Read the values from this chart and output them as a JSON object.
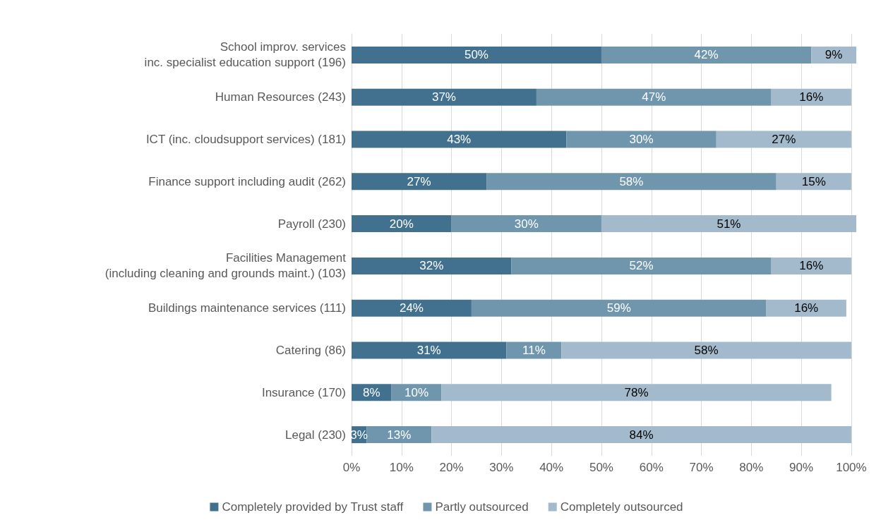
{
  "chart_data": {
    "type": "bar",
    "orientation": "horizontal",
    "stacked": true,
    "categories": [
      "School improv. services\ninc. specialist education support (196)",
      "Human Resources (243)",
      "ICT (inc. cloudsupport services) (181)",
      "Finance support including audit (262)",
      "Payroll (230)",
      "Facilities Management\n(including cleaning and grounds maint.) (103)",
      "Buildings maintenance services (111)",
      "Catering (86)",
      "Insurance (170)",
      "Legal (230)"
    ],
    "series": [
      {
        "name": "Completely provided by Trust staff",
        "color": "#41718f",
        "values": [
          50,
          37,
          43,
          27,
          20,
          32,
          24,
          31,
          8,
          3
        ],
        "value_labels": [
          "50%",
          "37%",
          "43%",
          "27%",
          "20%",
          "32%",
          "24%",
          "31%",
          "8%",
          "3%"
        ]
      },
      {
        "name": "Partly outsourced",
        "color": "#7096ae",
        "values": [
          42,
          47,
          30,
          58,
          30,
          52,
          59,
          11,
          10,
          13
        ],
        "value_labels": [
          "42%",
          "47%",
          "30%",
          "58%",
          "30%",
          "52%",
          "59%",
          "11%",
          "10%",
          "13%"
        ]
      },
      {
        "name": "Completely outsourced",
        "color": "#a2bacb",
        "values": [
          9,
          16,
          27,
          15,
          51,
          16,
          16,
          58,
          78,
          84
        ],
        "value_labels": [
          "9%",
          "16%",
          "27%",
          "15%",
          "51%",
          "16%",
          "16%",
          "58%",
          "78%",
          "84%"
        ]
      }
    ],
    "xlim": [
      0,
      101
    ],
    "xticks": [
      {
        "value": 0,
        "label": "0%"
      },
      {
        "value": 10,
        "label": "10%"
      },
      {
        "value": 20,
        "label": "20%"
      },
      {
        "value": 30,
        "label": "30%"
      },
      {
        "value": 40,
        "label": "40%"
      },
      {
        "value": 50,
        "label": "50%"
      },
      {
        "value": 60,
        "label": "60%"
      },
      {
        "value": 70,
        "label": "70%"
      },
      {
        "value": 80,
        "label": "80%"
      },
      {
        "value": 90,
        "label": "90%"
      },
      {
        "value": 100,
        "label": "100%"
      }
    ],
    "grid": "x",
    "legend": "bottom"
  }
}
